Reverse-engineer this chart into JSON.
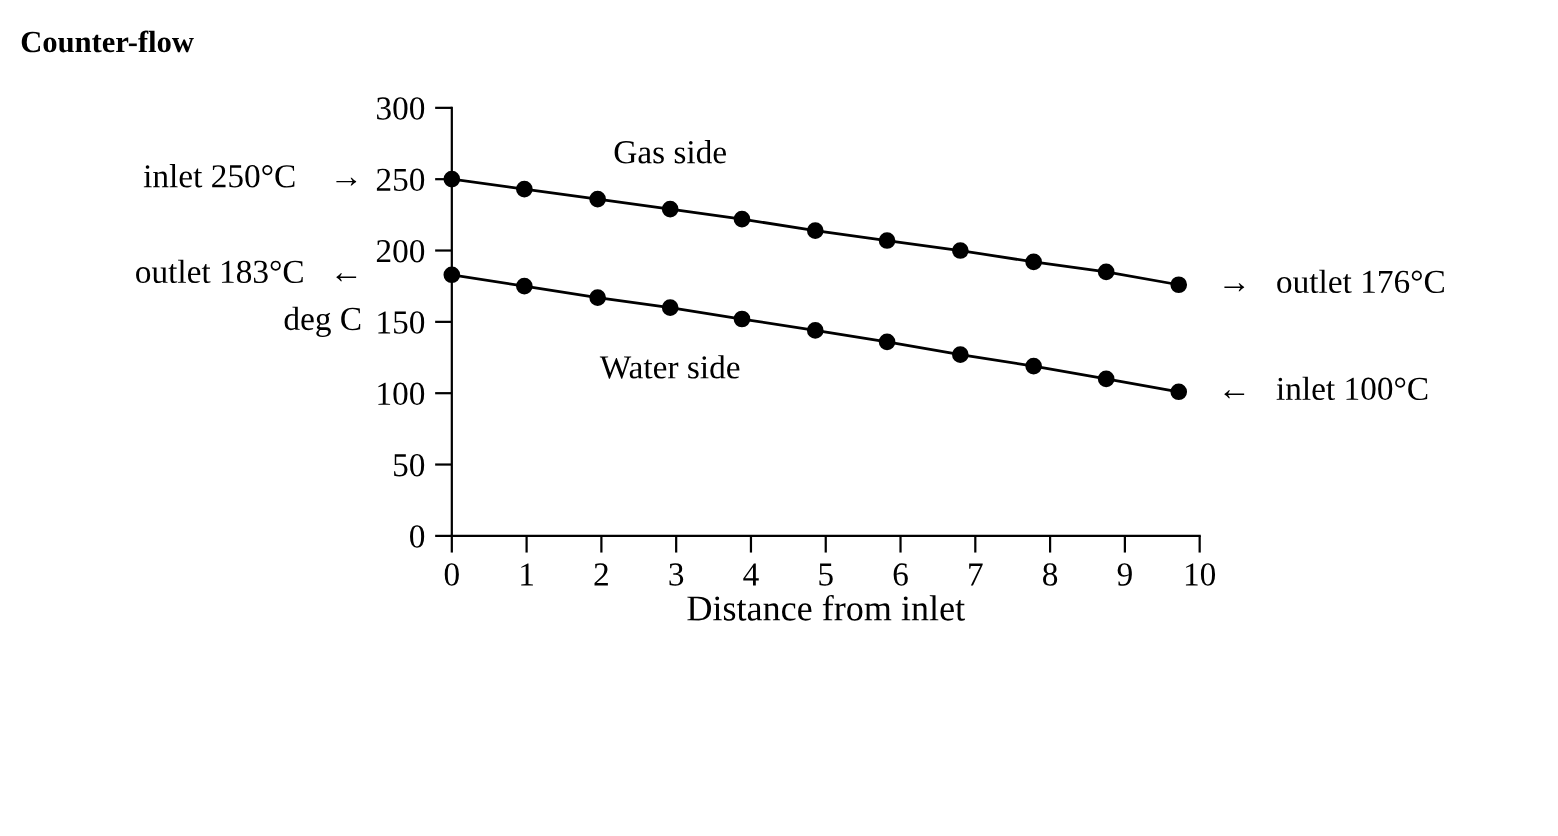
{
  "chart_data": {
    "type": "line",
    "title": "Counter-flow",
    "xlabel": "Distance from inlet",
    "ylabel": "deg C",
    "xlim": [
      0,
      10
    ],
    "ylim": [
      0,
      300
    ],
    "xticks": [
      0,
      1,
      2,
      3,
      4,
      5,
      6,
      7,
      8,
      9,
      10
    ],
    "yticks": [
      0,
      50,
      100,
      150,
      200,
      250,
      300
    ],
    "x": [
      0,
      0.97,
      1.95,
      2.92,
      3.88,
      4.86,
      5.82,
      6.8,
      7.78,
      8.75,
      9.72
    ],
    "marker": "circle",
    "line_style": "solid",
    "grid": false,
    "legend": false,
    "series": [
      {
        "name": "Gas side",
        "color": "#000000",
        "values": [
          250,
          243,
          236,
          229,
          222,
          214,
          207,
          200,
          192,
          185,
          176
        ]
      },
      {
        "name": "Water side",
        "color": "#000000",
        "values": [
          183,
          175,
          167,
          160,
          152,
          144,
          136,
          127,
          119,
          110,
          101
        ]
      }
    ],
    "annotations": [
      "inlet 250°C    →",
      "outlet 183°C   ←",
      "→   outlet 176°C",
      "←   inlet 100°C"
    ]
  }
}
